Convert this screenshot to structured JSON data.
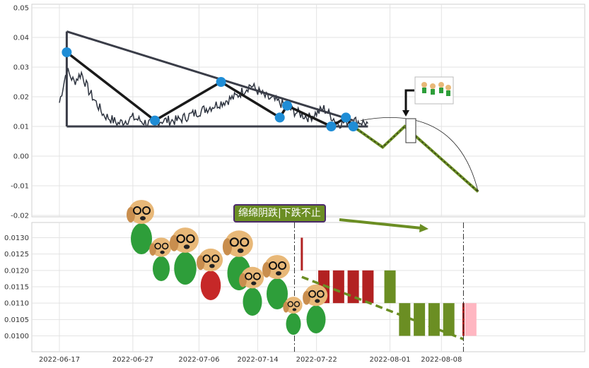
{
  "chart_data": [
    {
      "type": "line",
      "title": "",
      "xlabel": "",
      "ylabel": "",
      "ylim": [
        -0.02,
        0.05
      ],
      "yticks": [
        "0.05",
        "0.04",
        "0.03",
        "0.02",
        "0.01",
        "0.00",
        "-0.01",
        "-0.02"
      ],
      "grid": true,
      "series": [
        {
          "name": "",
          "color": "#2e3440",
          "x": [
            "2022-06-17",
            "2022-06-18",
            "2022-06-19",
            "2022-06-20",
            "2022-06-21",
            "2022-06-23",
            "2022-06-25",
            "2022-06-27",
            "2022-06-29",
            "2022-07-01",
            "2022-07-03",
            "2022-07-05",
            "2022-07-07",
            "2022-07-09",
            "2022-07-11",
            "2022-07-13",
            "2022-07-15",
            "2022-07-17",
            "2022-07-19",
            "2022-07-21",
            "2022-07-23",
            "2022-07-25",
            "2022-07-27",
            "2022-07-29"
          ],
          "values": [
            0.018,
            0.029,
            0.025,
            0.028,
            0.022,
            0.014,
            0.011,
            0.013,
            0.011,
            0.012,
            0.012,
            0.014,
            0.016,
            0.018,
            0.02,
            0.024,
            0.02,
            0.018,
            0.015,
            0.013,
            0.016,
            0.011,
            0.012,
            0.011
          ]
        }
      ],
      "markers": {
        "color": "#1f8dd6",
        "points": [
          {
            "x": "2022-06-18",
            "y": 0.035
          },
          {
            "x": "2022-06-30",
            "y": 0.012
          },
          {
            "x": "2022-07-09",
            "y": 0.025
          },
          {
            "x": "2022-07-17",
            "y": 0.013
          },
          {
            "x": "2022-07-18",
            "y": 0.017
          },
          {
            "x": "2022-07-24",
            "y": 0.01
          },
          {
            "x": "2022-07-26",
            "y": 0.013
          },
          {
            "x": "2022-07-27",
            "y": 0.01
          }
        ]
      },
      "trend_lines": [
        {
          "points": [
            {
              "x": "2022-06-18",
              "y": 0.042
            },
            {
              "x": "2022-07-27",
              "y": 0.012
            }
          ]
        },
        {
          "points": [
            {
              "x": "2022-06-18",
              "y": 0.01
            },
            {
              "x": "2022-07-29",
              "y": 0.01
            }
          ]
        },
        {
          "points": [
            {
              "x": "2022-06-18",
              "y": 0.042
            },
            {
              "x": "2022-06-18",
              "y": 0.01
            }
          ]
        },
        {
          "points": [
            {
              "x": "2022-06-18",
              "y": 0.035
            },
            {
              "x": "2022-06-30",
              "y": 0.012
            },
            {
              "x": "2022-07-09",
              "y": 0.025
            },
            {
              "x": "2022-07-17",
              "y": 0.013
            },
            {
              "x": "2022-07-18",
              "y": 0.017
            },
            {
              "x": "2022-07-24",
              "y": 0.01
            },
            {
              "x": "2022-07-26",
              "y": 0.013
            },
            {
              "x": "2022-07-27",
              "y": 0.01
            }
          ]
        }
      ],
      "forecast": {
        "color": "#6b8e23",
        "points": [
          {
            "x": "2022-07-27",
            "y": 0.01
          },
          {
            "x": "2022-07-31",
            "y": 0.003
          },
          {
            "x": "2022-08-03",
            "y": 0.01
          },
          {
            "x": "2022-08-13",
            "y": -0.012
          }
        ]
      }
    },
    {
      "type": "bar",
      "title": "",
      "ylim": [
        0.0098,
        0.0133
      ],
      "yticks": [
        "0.0130",
        "0.0125",
        "0.0120",
        "0.0115",
        "0.0110",
        "0.0105",
        "0.0100"
      ],
      "xticks": [
        "2022-06-17",
        "2022-06-27",
        "2022-07-06",
        "2022-07-14",
        "2022-07-22",
        "2022-08-01",
        "2022-08-08"
      ],
      "grid": true,
      "bars": [
        {
          "x": "2022-07-20",
          "low": 0.012,
          "high": 0.013,
          "color": "#b22222"
        },
        {
          "x": "2022-07-23",
          "low": 0.011,
          "high": 0.012,
          "color": "#b22222"
        },
        {
          "x": "2022-07-25",
          "low": 0.011,
          "high": 0.012,
          "color": "#b22222"
        },
        {
          "x": "2022-07-27",
          "low": 0.011,
          "high": 0.012,
          "color": "#b22222"
        },
        {
          "x": "2022-07-29",
          "low": 0.011,
          "high": 0.012,
          "color": "#b22222"
        },
        {
          "x": "2022-08-01",
          "low": 0.011,
          "high": 0.012,
          "color": "#6b8e23"
        },
        {
          "x": "2022-08-03",
          "low": 0.01,
          "high": 0.011,
          "color": "#6b8e23"
        },
        {
          "x": "2022-08-05",
          "low": 0.01,
          "high": 0.011,
          "color": "#6b8e23"
        },
        {
          "x": "2022-08-07",
          "low": 0.01,
          "high": 0.011,
          "color": "#6b8e23"
        },
        {
          "x": "2022-08-09",
          "low": 0.01,
          "high": 0.011,
          "color": "#6b8e23"
        },
        {
          "x": "2022-08-11",
          "low": 0.01,
          "high": 0.011,
          "color": "#b22222"
        },
        {
          "x": "2022-08-12",
          "low": 0.01,
          "high": 0.011,
          "color": "#ffb6c1"
        }
      ],
      "trend": {
        "color": "#6b8e23",
        "points": [
          {
            "x": "2022-07-20",
            "y": 0.0118
          },
          {
            "x": "2022-08-11",
            "y": 0.0099
          }
        ]
      },
      "vlines": [
        "2022-07-19",
        "2022-08-11"
      ]
    }
  ],
  "annotation": {
    "text": "绵绵阴跌|下跌不止",
    "bg_color": "#6b8e23",
    "border_color": "#4b2a6a"
  }
}
